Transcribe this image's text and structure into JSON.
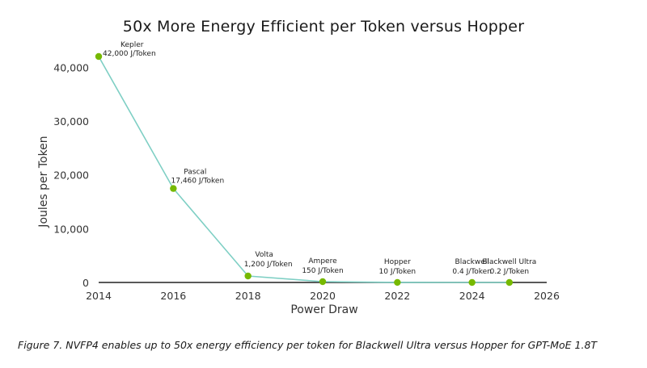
{
  "chart_data": {
    "type": "line",
    "title": "50x More Energy Efficient per Token versus Hopper",
    "xlabel": "Power Draw",
    "ylabel": "Joules per Token",
    "xlim": [
      2014,
      2026
    ],
    "ylim": [
      0,
      45000
    ],
    "xticks": [
      "2014",
      "2016",
      "2018",
      "2020",
      "2022",
      "2024",
      "2026"
    ],
    "yticks": [
      "0",
      "10,000",
      "20,000",
      "30,000",
      "40,000"
    ],
    "grid": false,
    "line_color": "#7ecfc4",
    "marker_color": "#76b900",
    "points": [
      {
        "name": "Kepler",
        "x": 2014,
        "y": 42000,
        "label": "42,000 J/Token"
      },
      {
        "name": "Pascal",
        "x": 2016,
        "y": 17460,
        "label": "17,460 J/Token"
      },
      {
        "name": "Volta",
        "x": 2018,
        "y": 1200,
        "label": "1,200 J/Token"
      },
      {
        "name": "Ampere",
        "x": 2020,
        "y": 150,
        "label": "150 J/Token"
      },
      {
        "name": "Hopper",
        "x": 2022,
        "y": 10,
        "label": "10 J/Token"
      },
      {
        "name": "Blackwell",
        "x": 2024,
        "y": 0.4,
        "label": "0.4 J/Token"
      },
      {
        "name": "Blackwell Ultra",
        "x": 2025,
        "y": 0.2,
        "label": "0.2 J/Token"
      }
    ]
  },
  "caption": "Figure 7. NVFP4 enables up to 50x energy efficiency per token for Blackwell Ultra versus Hopper for GPT-MoE 1.8T"
}
